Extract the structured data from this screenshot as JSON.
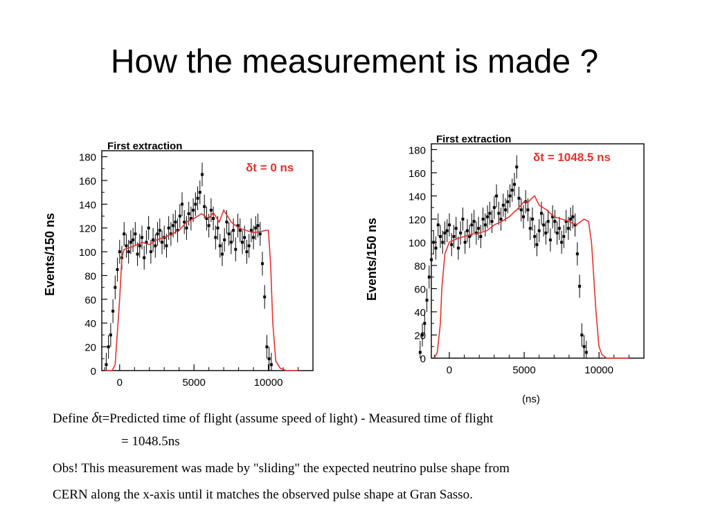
{
  "slide": {
    "title": "How the measurement is made ?",
    "definition_prefix": "Define ",
    "definition_symbol": "δ",
    "definition_text": "t=Predicted time of flight (assume speed of light) - Measured time of flight",
    "definition_value": "= 1048.5ns",
    "obs_line1": "Obs! This measurement was made by \"sliding\" the expected neutrino pulse shape from",
    "obs_line2": "CERN along the x-axis until it matches the observed pulse shape at Gran Sasso."
  },
  "colors": {
    "model_line": "#e8302a",
    "data_points": "#000000",
    "annotation": "#e8302a"
  },
  "chart_data": [
    {
      "type": "scatter",
      "title": "First extraction",
      "annotation": "δt = 0 ns",
      "ylabel": "Events/150 ns",
      "xlabel": "",
      "xlim": [
        -1200,
        13000
      ],
      "ylim": [
        0,
        185
      ],
      "xticks": [
        0,
        5000,
        10000
      ],
      "xtick_labels": [
        "0",
        "5000",
        "10000"
      ],
      "yticks": [
        0,
        20,
        40,
        60,
        80,
        100,
        120,
        140,
        160,
        180
      ],
      "ytick_labels": [
        "0",
        "20",
        "40",
        "60",
        "80",
        "100",
        "120",
        "140",
        "160",
        "180"
      ],
      "grid": false,
      "series": [
        {
          "kind": "points_with_errors",
          "x": [
            -900,
            -750,
            -600,
            -450,
            -300,
            -150,
            0,
            150,
            300,
            450,
            600,
            750,
            900,
            1050,
            1200,
            1350,
            1500,
            1650,
            1800,
            1950,
            2100,
            2250,
            2400,
            2550,
            2700,
            2850,
            3000,
            3150,
            3300,
            3450,
            3600,
            3750,
            3900,
            4050,
            4200,
            4350,
            4500,
            4650,
            4800,
            4950,
            5100,
            5250,
            5400,
            5550,
            5700,
            5850,
            6000,
            6150,
            6300,
            6450,
            6600,
            6750,
            6900,
            7050,
            7200,
            7350,
            7500,
            7650,
            7800,
            7950,
            8100,
            8250,
            8400,
            8550,
            8700,
            8850,
            9000,
            9150,
            9300,
            9450,
            9600,
            9750,
            9900,
            10050,
            10200
          ],
          "y": [
            5,
            20,
            30,
            50,
            70,
            85,
            100,
            95,
            115,
            105,
            100,
            108,
            110,
            115,
            98,
            105,
            112,
            95,
            108,
            120,
            100,
            110,
            105,
            115,
            118,
            108,
            112,
            105,
            120,
            115,
            122,
            125,
            118,
            130,
            140,
            125,
            120,
            132,
            128,
            135,
            140,
            145,
            150,
            165,
            138,
            128,
            122,
            135,
            128,
            112,
            120,
            105,
            98,
            110,
            125,
            115,
            108,
            118,
            102,
            122,
            118,
            108,
            112,
            100,
            105,
            118,
            112,
            120,
            122,
            115,
            90,
            62,
            20,
            10,
            5
          ],
          "err": 10
        },
        {
          "kind": "model_curve",
          "x": [
            -1000,
            -500,
            -300,
            0,
            150,
            300,
            600,
            1000,
            1500,
            2000,
            2500,
            3000,
            3500,
            4000,
            4500,
            5000,
            5500,
            6000,
            6300,
            6700,
            7000,
            7500,
            8000,
            8500,
            9000,
            9500,
            9800,
            10000,
            10150,
            10300,
            10500,
            10800,
            11200,
            12000
          ],
          "y": [
            0,
            0,
            5,
            60,
            95,
            102,
            103,
            105,
            108,
            106,
            110,
            112,
            115,
            118,
            125,
            128,
            132,
            128,
            133,
            125,
            135,
            125,
            120,
            118,
            116,
            117,
            118,
            118,
            90,
            40,
            8,
            2,
            0,
            0
          ]
        }
      ]
    },
    {
      "type": "scatter",
      "title": "First extraction",
      "annotation": "δt = 1048.5 ns",
      "ylabel": "Events/150 ns",
      "xlabel": "(ns)",
      "xlim": [
        -1200,
        13000
      ],
      "ylim": [
        0,
        185
      ],
      "xticks": [
        0,
        5000,
        10000
      ],
      "xtick_labels": [
        "0",
        "5000",
        "10000"
      ],
      "yticks": [
        0,
        20,
        40,
        60,
        80,
        100,
        120,
        140,
        160,
        180
      ],
      "ytick_labels": [
        "0",
        "20",
        "40",
        "60",
        "80",
        "100",
        "120",
        "140",
        "160",
        "180"
      ],
      "grid": false,
      "series": [
        {
          "kind": "points_with_errors",
          "x": [
            -900,
            -750,
            -600,
            -450,
            -300,
            -150,
            0,
            150,
            300,
            450,
            600,
            750,
            900,
            1050,
            1200,
            1350,
            1500,
            1650,
            1800,
            1950,
            2100,
            2250,
            2400,
            2550,
            2700,
            2850,
            3000,
            3150,
            3300,
            3450,
            3600,
            3750,
            3900,
            4050,
            4200,
            4350,
            4500,
            4650,
            4800,
            4950,
            5100,
            5250,
            5400,
            5550,
            5700,
            5850,
            6000,
            6150,
            6300,
            6450,
            6600,
            6750,
            6900,
            7050,
            7200,
            7350,
            7500,
            7650,
            7800,
            7950,
            8100,
            8250,
            8400,
            8550,
            8700,
            8850,
            9000,
            9150,
            9300,
            9450,
            9600,
            9750,
            9900,
            10050,
            10200
          ],
          "y": [
            5,
            20,
            30,
            50,
            70,
            85,
            100,
            95,
            115,
            105,
            100,
            108,
            110,
            115,
            98,
            105,
            112,
            95,
            108,
            120,
            100,
            110,
            105,
            115,
            118,
            108,
            112,
            105,
            120,
            115,
            122,
            125,
            118,
            130,
            140,
            125,
            120,
            132,
            128,
            135,
            140,
            145,
            150,
            165,
            138,
            128,
            122,
            135,
            128,
            112,
            120,
            105,
            98,
            110,
            125,
            115,
            108,
            118,
            102,
            122,
            118,
            108,
            112,
            100,
            105,
            118,
            112,
            120,
            122,
            115,
            90,
            62,
            20,
            10,
            5
          ],
          "err": 10,
          "x_shift": -1048.5
        },
        {
          "kind": "model_curve",
          "x": [
            -1000,
            -800,
            -600,
            -500,
            -300,
            0,
            500,
            1000,
            1500,
            2000,
            2500,
            3000,
            3500,
            4000,
            4500,
            5000,
            5300,
            5500,
            5700,
            6000,
            6500,
            7000,
            7500,
            8000,
            8500,
            9000,
            9300,
            9500,
            9600,
            9800,
            10000,
            10200,
            10500,
            11000,
            12000
          ],
          "y": [
            0,
            5,
            30,
            60,
            90,
            100,
            103,
            105,
            107,
            108,
            110,
            115,
            118,
            122,
            128,
            135,
            135,
            138,
            140,
            132,
            128,
            122,
            120,
            118,
            115,
            120,
            118,
            100,
            80,
            40,
            10,
            3,
            0,
            0,
            0
          ]
        }
      ]
    }
  ]
}
